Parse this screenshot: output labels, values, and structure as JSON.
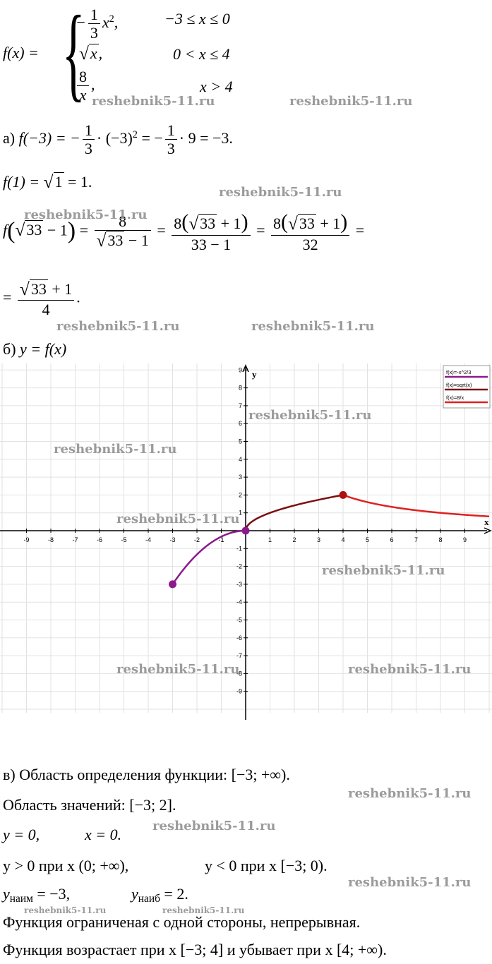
{
  "piecewise": {
    "lhs": "f(x) =",
    "case1_expr_pre": "−",
    "case1_num": "1",
    "case1_den": "3",
    "case1_expr_post": "x",
    "case1_exp": "2",
    "case1_cond": "−3 ≤ x ≤ 0",
    "case2_expr": "x",
    "case2_cond": "0 < x ≤ 4",
    "case3_num": "8",
    "case3_den": "x",
    "case3_cond": "x > 4"
  },
  "part_a": {
    "label": "а)",
    "line1": "f(−3) = −",
    "line1_frac_num": "1",
    "line1_frac_den": "3",
    "line1_mid": "· (−3)",
    "line1_exp": "2",
    "line1_mid2": "= −",
    "line1_tail": "· 9 = −3.",
    "line2_pre": "f(1) =",
    "line2_rad": "1",
    "line2_post": "= 1.",
    "line3_pre": "f",
    "line3_rad": "33",
    "line3_minus": "− 1",
    "frac1_num": "8",
    "frac1_den_rad": "33",
    "frac1_den_post": "− 1",
    "frac2_num_pre": "8",
    "frac2_num_rad": "33",
    "frac2_num_post": "+ 1",
    "frac2_den": "33 − 1",
    "frac3_num_pre": "8",
    "frac3_num_rad": "33",
    "frac3_num_post": "+ 1",
    "frac3_den": "32",
    "eq": "=",
    "line4_num_rad": "33",
    "line4_num_post": "+ 1",
    "line4_den": "4",
    "line4_end": "."
  },
  "part_b": {
    "label": "б)",
    "text": "y = f(x)"
  },
  "chart_data": {
    "type": "line",
    "xlabel": "x",
    "ylabel": "y",
    "xlim": [
      -10,
      10
    ],
    "ylim": [
      -10,
      10
    ],
    "x_ticks": [
      "-9",
      "-8",
      "-7",
      "-6",
      "-5",
      "-4",
      "-3",
      "-2",
      "-1",
      "1",
      "2",
      "3",
      "4",
      "5",
      "6",
      "7",
      "8",
      "9"
    ],
    "y_ticks": [
      "9",
      "8",
      "7",
      "6",
      "5",
      "4",
      "3",
      "2",
      "1",
      "-1",
      "-2",
      "-3",
      "-4",
      "-5",
      "-6",
      "-7",
      "-8",
      "-9"
    ],
    "grid": true,
    "legend_position": "top-right",
    "series": [
      {
        "name": "f(x)=-x^2/3",
        "color": "#8b1a8b",
        "domain": [
          -3,
          0
        ],
        "points": [
          [
            -3,
            -3
          ],
          [
            -2.5,
            -2.083
          ],
          [
            -2,
            -1.333
          ],
          [
            -1.5,
            -0.75
          ],
          [
            -1,
            -0.333
          ],
          [
            -0.5,
            -0.083
          ],
          [
            0,
            0
          ]
        ]
      },
      {
        "name": "f(x)=sqrt(x)",
        "color": "#7a1010",
        "domain": [
          0,
          4
        ],
        "points": [
          [
            0,
            0
          ],
          [
            0.25,
            0.5
          ],
          [
            1,
            1
          ],
          [
            2,
            1.414
          ],
          [
            3,
            1.732
          ],
          [
            4,
            2
          ]
        ]
      },
      {
        "name": "f(x)=8/x",
        "color": "#e02020",
        "domain": [
          4,
          10
        ],
        "points": [
          [
            4,
            2
          ],
          [
            5,
            1.6
          ],
          [
            6,
            1.333
          ],
          [
            7,
            1.143
          ],
          [
            8,
            1
          ],
          [
            9,
            0.889
          ],
          [
            10,
            0.8
          ]
        ]
      }
    ],
    "markers": [
      {
        "x": -3,
        "y": -3,
        "color": "#8b1a8b"
      },
      {
        "x": 0,
        "y": 0,
        "color": "#8b1a8b"
      },
      {
        "x": 4,
        "y": 2,
        "color": "#b01010"
      }
    ]
  },
  "part_v": {
    "line1_label": "в)",
    "line1": "Область определения функции: [−3;  +∞).",
    "line2": "Область значений: [−3; 2].",
    "line3a": "y = 0,",
    "line3b": "x = 0.",
    "line4a": "y > 0 при x (0;  +∞),",
    "line4b": "y < 0 при x [−3; 0).",
    "line5a_y": "y",
    "line5a_sub": "наим",
    "line5a_rest": " = −3,",
    "line5b_y": "y",
    "line5b_sub": "наиб",
    "line5b_rest": " = 2.",
    "line6": "Функция ограниченая с одной стороны, непрерывная.",
    "line7": "Функция возрастает при x [−3; 4] и убывает при x [4;  +∞)."
  },
  "watermark": "reshebnik5-11.ru"
}
